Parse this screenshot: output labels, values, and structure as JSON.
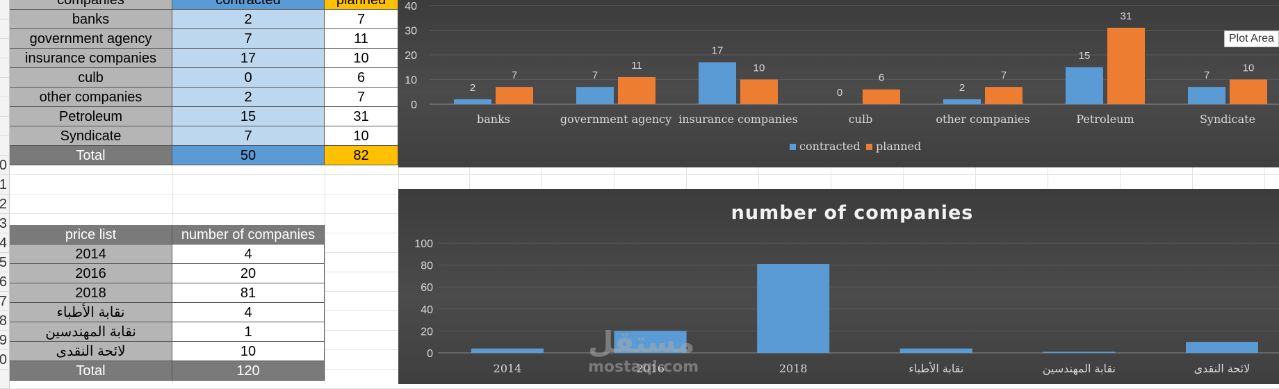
{
  "table1": {
    "headers": [
      "companies",
      "contracted",
      "planned"
    ],
    "rows": [
      {
        "name": "banks",
        "contracted": "2",
        "planned": "7"
      },
      {
        "name": "government agency",
        "contracted": "7",
        "planned": "11"
      },
      {
        "name": "insurance companies",
        "contracted": "17",
        "planned": "10"
      },
      {
        "name": "culb",
        "contracted": "0",
        "planned": "6"
      },
      {
        "name": "other companies",
        "contracted": "2",
        "planned": "7"
      },
      {
        "name": "Petroleum",
        "contracted": "15",
        "planned": "31"
      },
      {
        "name": "Syndicate",
        "contracted": "7",
        "planned": "10"
      }
    ],
    "total": {
      "label": "Total",
      "contracted": "50",
      "planned": "82"
    }
  },
  "table2": {
    "headers": [
      "price list",
      "number of companies"
    ],
    "rows": [
      {
        "name": "2014",
        "value": "4"
      },
      {
        "name": "2016",
        "value": "20"
      },
      {
        "name": "2018",
        "value": "81"
      },
      {
        "name": "نقابة الأطباء",
        "value": "4"
      },
      {
        "name": "نقابة المهندسين",
        "value": "1"
      },
      {
        "name": "لائحة النقدى",
        "value": "10"
      }
    ],
    "total": {
      "label": "Total",
      "value": "120"
    }
  },
  "row_numbers": {
    "visible": [
      "0",
      "1",
      "2",
      "3",
      "4",
      "5",
      "6",
      "7",
      "8",
      "9",
      "0"
    ]
  },
  "tooltip": "Plot Area",
  "watermark": {
    "arabic": "مستقل",
    "latin": "mostaql.com"
  },
  "colors": {
    "contracted": "#5b9bd5",
    "planned": "#ed7d31"
  },
  "chart_data": [
    {
      "type": "bar",
      "title": "",
      "categories": [
        "banks",
        "government agency",
        "insurance companies",
        "culb",
        "other companies",
        "Petroleum",
        "Syndicate"
      ],
      "series": [
        {
          "name": "contracted",
          "values": [
            2,
            7,
            17,
            0,
            2,
            15,
            7
          ]
        },
        {
          "name": "planned",
          "values": [
            7,
            11,
            10,
            6,
            7,
            31,
            10
          ]
        }
      ],
      "ylim": [
        0,
        40
      ],
      "yticks": [
        0,
        10,
        20,
        30,
        40
      ],
      "legend": "bottom",
      "data_labels": true,
      "grid": true
    },
    {
      "type": "bar",
      "title": "number of companies",
      "categories": [
        "2014",
        "2016",
        "2018",
        "نقابة الأطباء",
        "نقابة المهندسين",
        "لائحة النقدى"
      ],
      "series": [
        {
          "name": "number of companies",
          "values": [
            4,
            20,
            81,
            4,
            1,
            10
          ]
        }
      ],
      "ylim": [
        0,
        100
      ],
      "yticks": [
        0,
        20,
        40,
        60,
        80,
        100
      ],
      "legend": "none",
      "data_labels": false,
      "grid": true
    }
  ]
}
